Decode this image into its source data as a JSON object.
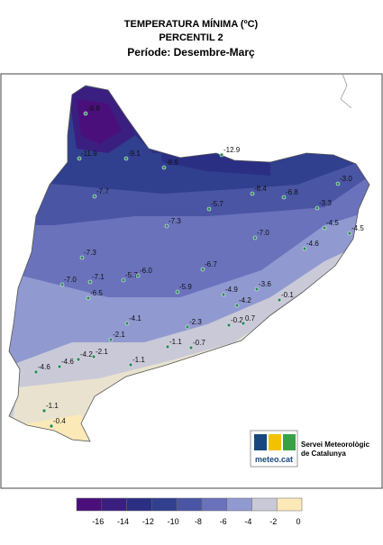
{
  "header": {
    "title": "TEMPERATURA MÍNIMA (ºC)",
    "subtitle": "PERCENTIL 2",
    "period": "Període: Desembre-Març"
  },
  "stations": [
    "-9.8",
    "-11.9",
    "-9.1",
    "-8.9",
    "-12.9",
    "-7.7",
    "-8.4",
    "-6.8",
    "-3.0",
    "-3.3",
    "-5.7",
    "-7.3",
    "-4.5",
    "-4.5",
    "-4.6",
    "-7.0",
    "-7.3",
    "-7.0",
    "-7.1",
    "-5.7",
    "-6.0",
    "-6.7",
    "-6.5",
    "-5.9",
    "-4.9",
    "-3.6",
    "-0.1",
    "-4.2",
    "-4.1",
    "-2.3",
    "-0.2",
    "0.7",
    "-2.1",
    "-1.1",
    "-0.7",
    "-4.2",
    "-2.1",
    "-1.1",
    "-4.6",
    "-4.6",
    "-1.1",
    "-0.4"
  ],
  "logo": {
    "brand": "meteo.cat",
    "line1": "Servei Meteorològic",
    "line2": "de Catalunya"
  },
  "legend": {
    "colors": [
      "#4a0f7a",
      "#3a1f80",
      "#2b2f84",
      "#303f8e",
      "#4a55a4",
      "#6a72bc",
      "#9099d0",
      "#c9c9d8",
      "#fbe9b8"
    ],
    "ticks": [
      -16,
      -14,
      -12,
      -10,
      -8,
      -6,
      -4,
      -2,
      0
    ]
  }
}
